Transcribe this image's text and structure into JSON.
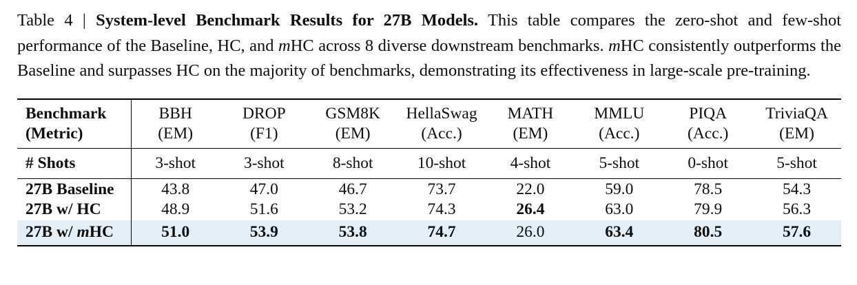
{
  "caption": {
    "label": "Table 4 |",
    "title": "System-level Benchmark Results for 27B Models.",
    "body_a": " This table compares the zero-shot and few-shot performance of the Baseline, HC, and ",
    "italic_m": "m",
    "body_b": "HC across 8 diverse downstream benchmarks. ",
    "body_c": "HC consistently outperforms the Baseline and surpasses HC on the majority of benchmarks, demonstrating its effectiveness in large-scale pre-training."
  },
  "chart_data": {
    "type": "table",
    "title": "System-level Benchmark Results for 27B Models",
    "columns": [
      "BBH (EM)",
      "DROP (F1)",
      "GSM8K (EM)",
      "HellaSwag (Acc.)",
      "MATH (EM)",
      "MMLU (Acc.)",
      "PIQA (Acc.)",
      "TriviaQA (EM)"
    ],
    "shots": [
      "3-shot",
      "3-shot",
      "8-shot",
      "10-shot",
      "4-shot",
      "5-shot",
      "0-shot",
      "5-shot"
    ],
    "series": [
      {
        "name": "27B Baseline",
        "values": [
          43.8,
          47.0,
          46.7,
          73.7,
          22.0,
          59.0,
          78.5,
          54.3
        ]
      },
      {
        "name": "27B w/ HC",
        "values": [
          48.9,
          51.6,
          53.2,
          74.3,
          26.4,
          63.0,
          79.9,
          56.3
        ]
      },
      {
        "name": "27B w/ mHC",
        "values": [
          51.0,
          53.9,
          53.8,
          74.7,
          26.0,
          63.4,
          80.5,
          57.6
        ]
      }
    ]
  },
  "table": {
    "corner": {
      "line1": "Benchmark",
      "line2": "(Metric)"
    },
    "columns": [
      {
        "name": "BBH",
        "metric": "(EM)"
      },
      {
        "name": "DROP",
        "metric": "(F1)"
      },
      {
        "name": "GSM8K",
        "metric": "(EM)"
      },
      {
        "name": "HellaSwag",
        "metric": "(Acc.)"
      },
      {
        "name": "MATH",
        "metric": "(EM)"
      },
      {
        "name": "MMLU",
        "metric": "(Acc.)"
      },
      {
        "name": "PIQA",
        "metric": "(Acc.)"
      },
      {
        "name": "TriviaQA",
        "metric": "(EM)"
      }
    ],
    "shots": {
      "label": "# Shots",
      "values": [
        "3-shot",
        "3-shot",
        "8-shot",
        "10-shot",
        "4-shot",
        "5-shot",
        "0-shot",
        "5-shot"
      ]
    },
    "rows": [
      {
        "label": "27B Baseline",
        "values": [
          "43.8",
          "47.0",
          "46.7",
          "73.7",
          "22.0",
          "59.0",
          "78.5",
          "54.3"
        ],
        "bold": [
          false,
          false,
          false,
          false,
          false,
          false,
          false,
          false
        ]
      },
      {
        "label": "27B w/ HC",
        "values": [
          "48.9",
          "51.6",
          "53.2",
          "74.3",
          "26.4",
          "63.0",
          "79.9",
          "56.3"
        ],
        "bold": [
          false,
          false,
          false,
          false,
          true,
          false,
          false,
          false
        ]
      },
      {
        "label_prefix": "27B w/ ",
        "label_italic": "m",
        "label_suffix": "HC",
        "values": [
          "51.0",
          "53.9",
          "53.8",
          "74.7",
          "26.0",
          "63.4",
          "80.5",
          "57.6"
        ],
        "bold": [
          true,
          true,
          true,
          true,
          false,
          true,
          true,
          true
        ]
      }
    ],
    "highlight_color": "#e4eef7"
  }
}
